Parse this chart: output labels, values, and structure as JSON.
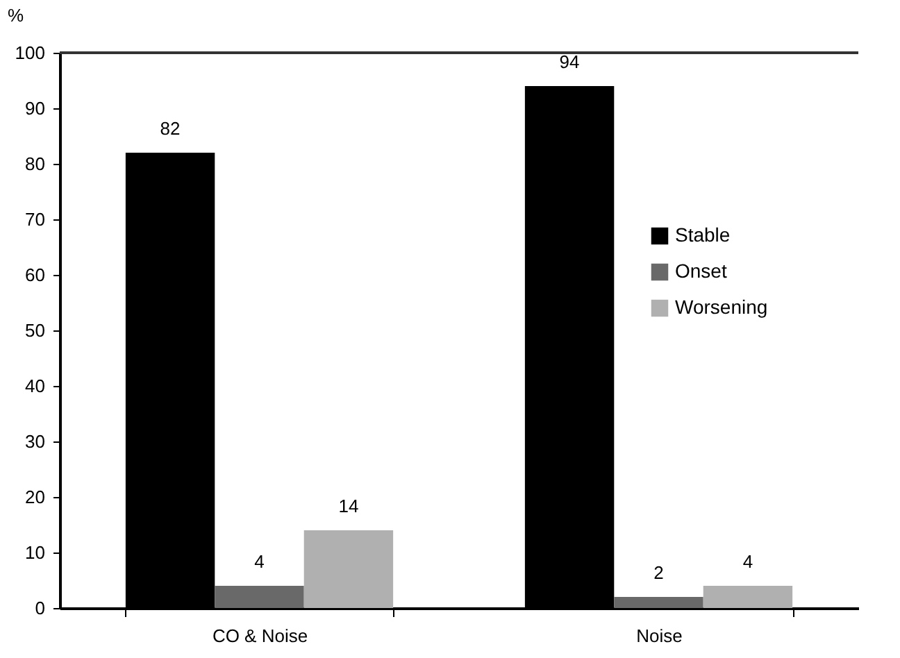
{
  "chart_data": {
    "type": "bar",
    "ylabel": "%",
    "categories": [
      "CO & Noise",
      "Noise"
    ],
    "series": [
      {
        "name": "Stable",
        "color": "#000000",
        "values": [
          82,
          94
        ]
      },
      {
        "name": "Onset",
        "color": "#696969",
        "values": [
          4,
          2
        ]
      },
      {
        "name": "Worsening",
        "color": "#b0b0b0",
        "values": [
          14,
          4
        ]
      }
    ],
    "ylim": [
      0,
      100
    ],
    "yticks": [
      0,
      10,
      20,
      30,
      40,
      50,
      60,
      70,
      80,
      90,
      100
    ],
    "grid": false,
    "legend": "right",
    "data_labels": true
  }
}
